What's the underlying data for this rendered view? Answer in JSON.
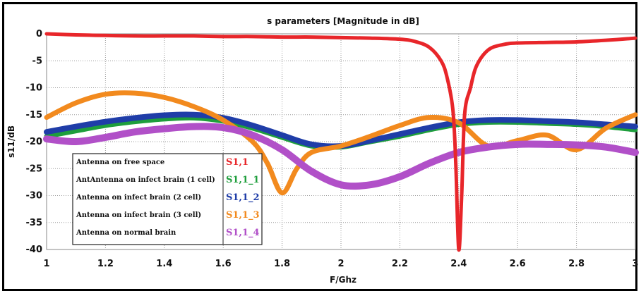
{
  "chart_data": {
    "type": "line",
    "title": "s parameters [Magnitude in dB]",
    "xlabel": "F/Ghz",
    "ylabel": "s11/dB",
    "xlim": [
      1,
      3
    ],
    "ylim": [
      -40,
      0
    ],
    "x_ticks": [
      "1",
      "1.2",
      "1.4",
      "1.6",
      "1.8",
      "2",
      "2.2",
      "2.4",
      "2.6",
      "2.8",
      "3"
    ],
    "y_ticks": [
      "0",
      "-5",
      "-10",
      "-15",
      "-20",
      "-25",
      "-30",
      "-35",
      "-40"
    ],
    "grid": true,
    "legend_position": "bottom-left",
    "series": [
      {
        "name": "S1,1",
        "description": "Antenna on free space",
        "color": "#e8262a",
        "x": [
          1.0,
          1.1,
          1.2,
          1.3,
          1.4,
          1.5,
          1.6,
          1.7,
          1.8,
          1.9,
          2.0,
          2.1,
          2.2,
          2.25,
          2.3,
          2.34,
          2.36,
          2.38,
          2.39,
          2.4,
          2.41,
          2.42,
          2.44,
          2.46,
          2.5,
          2.55,
          2.6,
          2.7,
          2.8,
          2.9,
          3.0
        ],
        "values": [
          0,
          -0.2,
          -0.3,
          -0.4,
          -0.4,
          -0.4,
          -0.5,
          -0.5,
          -0.6,
          -0.6,
          -0.7,
          -0.8,
          -1.0,
          -1.4,
          -2.5,
          -5,
          -8,
          -14,
          -24,
          -40,
          -30,
          -15,
          -10,
          -6,
          -3,
          -2,
          -1.7,
          -1.6,
          -1.5,
          -1.2,
          -0.8
        ]
      },
      {
        "name": "S1,1_1",
        "description": "AntAntenna on infect brain (1 cell)",
        "color": "#1e9e3c",
        "x": [
          1.0,
          1.1,
          1.2,
          1.3,
          1.4,
          1.5,
          1.6,
          1.7,
          1.8,
          1.9,
          2.0,
          2.1,
          2.2,
          2.3,
          2.4,
          2.5,
          2.6,
          2.7,
          2.8,
          2.9,
          3.0
        ],
        "values": [
          -19,
          -18,
          -17,
          -16.3,
          -15.8,
          -15.6,
          -16.2,
          -17.5,
          -19.2,
          -20.8,
          -21,
          -20,
          -19,
          -17.8,
          -16.8,
          -16.4,
          -16.4,
          -16.6,
          -16.8,
          -17.2,
          -17.8
        ]
      },
      {
        "name": "S1,1_2",
        "description": "Antenna on infect brain (2 cell)",
        "color": "#1f3da8",
        "x": [
          1.0,
          1.1,
          1.2,
          1.3,
          1.4,
          1.5,
          1.6,
          1.7,
          1.8,
          1.9,
          2.0,
          2.1,
          2.2,
          2.3,
          2.4,
          2.5,
          2.6,
          2.7,
          2.8,
          2.9,
          3.0
        ],
        "values": [
          -18.2,
          -17.2,
          -16.3,
          -15.6,
          -15.1,
          -15,
          -15.6,
          -17,
          -18.8,
          -20.5,
          -20.8,
          -19.8,
          -18.6,
          -17.4,
          -16.4,
          -16,
          -16,
          -16.2,
          -16.4,
          -16.8,
          -17.2
        ]
      },
      {
        "name": "S1,1_3",
        "description": "Antenna on infect brain (3 cell)",
        "color": "#f28a1e",
        "x": [
          1.0,
          1.1,
          1.2,
          1.3,
          1.4,
          1.5,
          1.6,
          1.7,
          1.75,
          1.8,
          1.85,
          1.9,
          2.0,
          2.1,
          2.2,
          2.3,
          2.4,
          2.5,
          2.6,
          2.7,
          2.8,
          2.9,
          3.0
        ],
        "values": [
          -15.5,
          -12.8,
          -11.2,
          -11,
          -11.8,
          -13.5,
          -16,
          -20,
          -24,
          -29.5,
          -25,
          -22,
          -20.8,
          -19,
          -17,
          -15.5,
          -16.5,
          -20.8,
          -19.8,
          -18.8,
          -21.5,
          -17.5,
          -15
        ]
      },
      {
        "name": "S1,1_4",
        "description": "Antenna on normal brain",
        "color": "#b150c8",
        "x": [
          1.0,
          1.1,
          1.2,
          1.3,
          1.4,
          1.5,
          1.6,
          1.7,
          1.8,
          1.9,
          2.0,
          2.1,
          2.2,
          2.3,
          2.4,
          2.5,
          2.6,
          2.7,
          2.8,
          2.9,
          3.0
        ],
        "values": [
          -19.5,
          -20,
          -19.2,
          -18.2,
          -17.6,
          -17.2,
          -17.4,
          -18.8,
          -21.5,
          -25.5,
          -28,
          -28,
          -26.5,
          -24,
          -22,
          -21,
          -20.5,
          -20.5,
          -20.6,
          -21,
          -22
        ]
      }
    ]
  }
}
